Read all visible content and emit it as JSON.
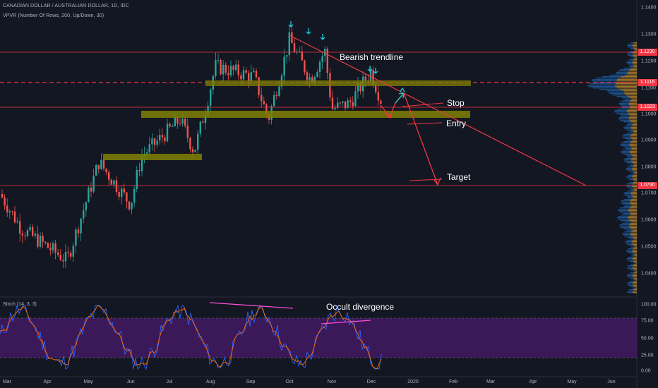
{
  "header": {
    "title": "CANADIAN DOLLAR / AUSTRALIAN DOLLAR, 1D, IDC",
    "indicator": "VPVR (Number Of Rows, 200, Up/Down, 30)"
  },
  "stoch": {
    "label": "Stoch (14, 3, 3)",
    "ticks": [
      "100.00",
      "75.00",
      "50.00",
      "25.00",
      "0.00"
    ]
  },
  "annotations": {
    "trendline": "Bearish trendline",
    "stop": "Stop",
    "entry": "Entry",
    "target": "Target",
    "divergence": "Occult divergence"
  },
  "price_axis": {
    "ticks": [
      "1.1400",
      "1.1300",
      "1.1200",
      "1.1100",
      "1.1000",
      "1.0900",
      "1.0800",
      "1.0700",
      "1.0600",
      "1.0500",
      "1.0400"
    ],
    "tags": [
      {
        "label": "1.1230",
        "color": "#f23645"
      },
      {
        "label": "1.1116",
        "color": "#f23645"
      },
      {
        "label": "1.1023",
        "color": "#f23645"
      },
      {
        "label": "1.0730",
        "color": "#f23645"
      }
    ]
  },
  "time_axis": [
    "Mar",
    "Apr",
    "May",
    "Jun",
    "Jul",
    "Aug",
    "Sep",
    "Oct",
    "Nov",
    "Dec",
    "2020",
    "Feb",
    "Mar",
    "Apr",
    "May",
    "Jun"
  ],
  "colors": {
    "background": "#131722",
    "up": "#26a69a",
    "down": "#ef5350",
    "level_line": "#f23645",
    "zone": "#808000",
    "stoch_band": "#4a1a6b",
    "stoch_k": "#2962ff",
    "stoch_d": "#ff6d00",
    "divergence": "#ff4fd8",
    "marker": "#26c6da"
  },
  "chart_data": {
    "type": "candlestick",
    "symbol": "CADAUD",
    "price_range": [
      1.035,
      1.145
    ],
    "levels": [
      1.123,
      1.1116,
      1.1023,
      1.073
    ],
    "zones": [
      {
        "from": 1.083,
        "to": 1.084
      },
      {
        "from": 1.0985,
        "to": 1.1
      },
      {
        "from": 1.111,
        "to": 1.112
      }
    ],
    "vpvr_poc": 1.1116
  }
}
